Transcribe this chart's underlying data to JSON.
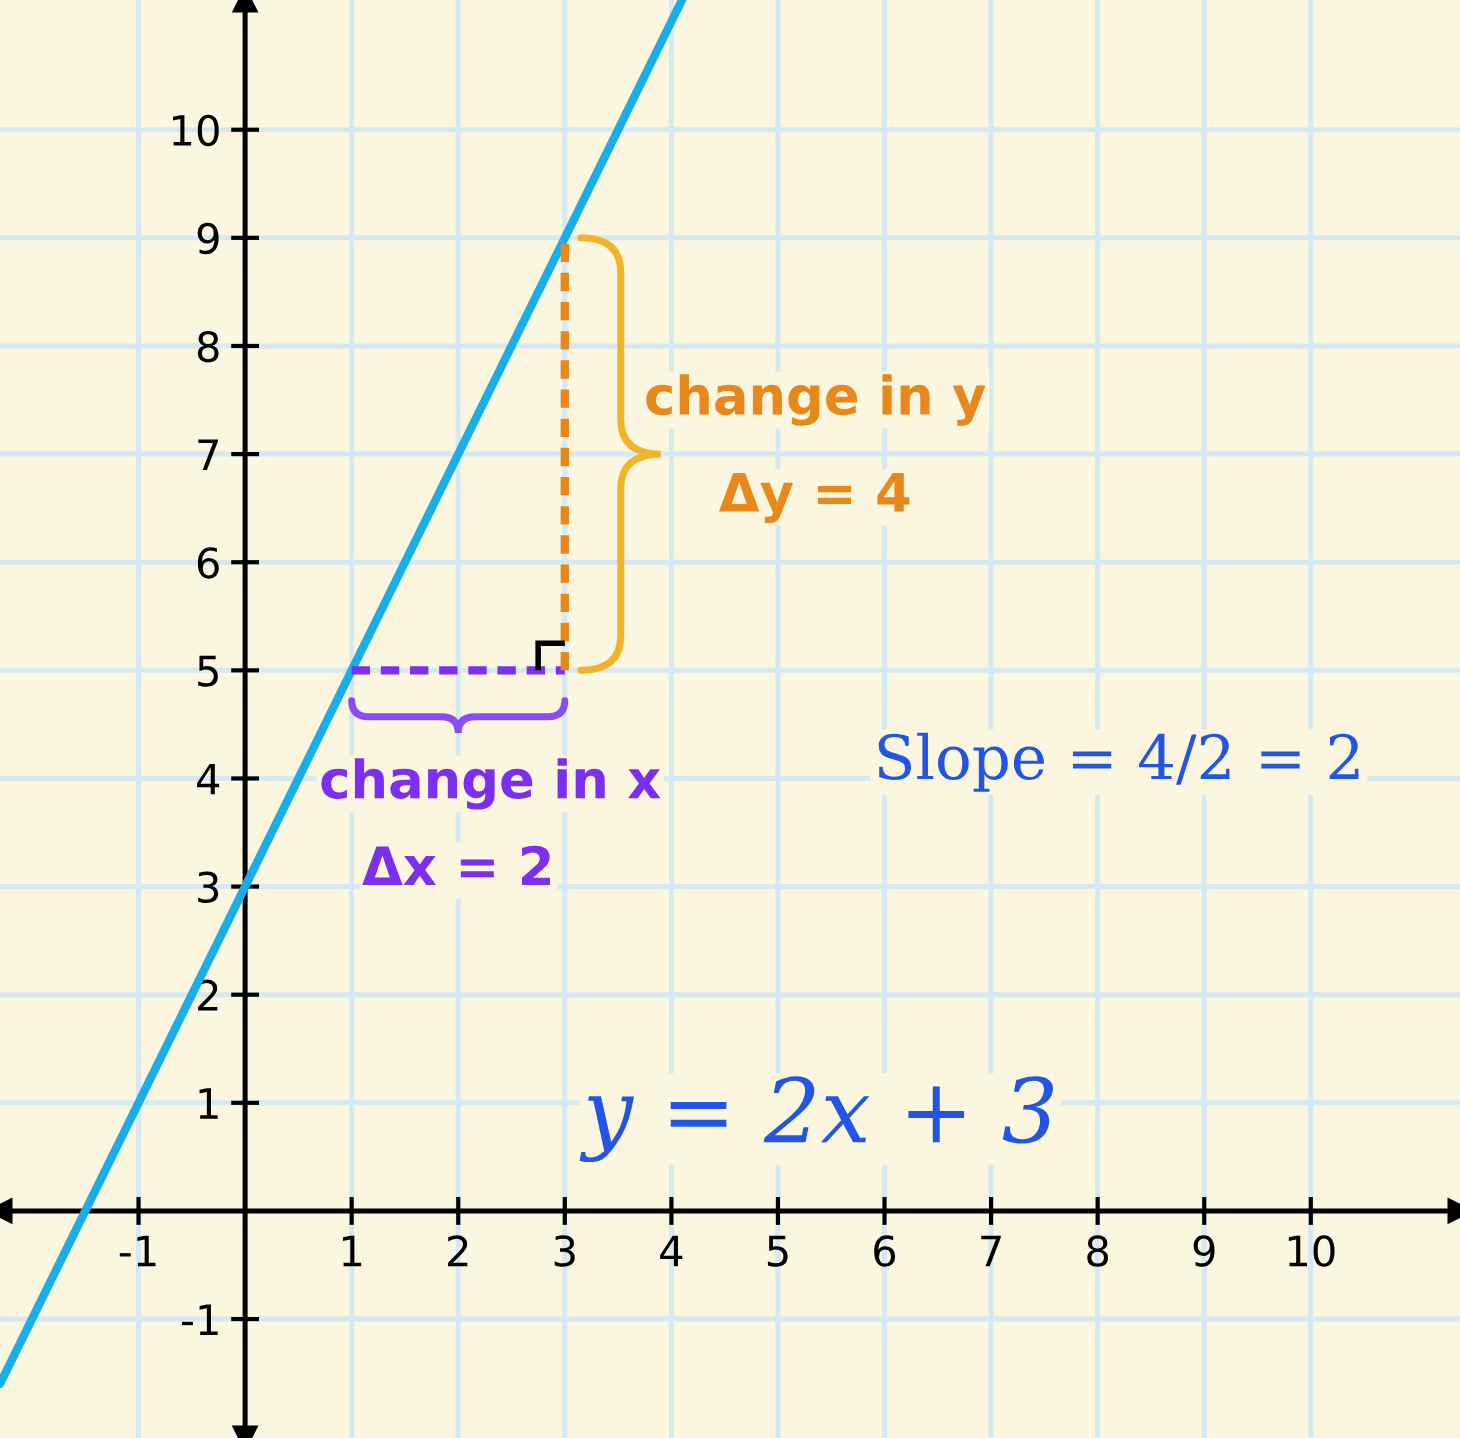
{
  "chart_data": {
    "type": "line",
    "series": [
      {
        "x": [
          -2.3,
          4.1
        ],
        "values": [
          -1.6,
          11.2
        ],
        "color": "#1aaee8",
        "line_style": "solid"
      },
      {
        "x": [
          1,
          3
        ],
        "values": [
          5,
          5
        ],
        "color": "#7b2ff2",
        "line_style": "dashed"
      },
      {
        "x": [
          3,
          3
        ],
        "values": [
          5,
          9
        ],
        "color": "#e8871a",
        "line_style": "dashed"
      }
    ],
    "xlim": [
      -2.3,
      11.4
    ],
    "ylim": [
      -2.1,
      11.2
    ],
    "xticks": [
      -1,
      1,
      2,
      3,
      4,
      5,
      6,
      7,
      8,
      9,
      10
    ],
    "yticks": [
      -1,
      1,
      2,
      3,
      4,
      5,
      6,
      7,
      8,
      9,
      10
    ],
    "grid": true,
    "marker": "none",
    "annotations": [
      "change in y",
      "Δy = 4",
      "change in x",
      "Δx = 2",
      "Slope = 4/2 = 2",
      "y = 2x + 3"
    ]
  }
}
